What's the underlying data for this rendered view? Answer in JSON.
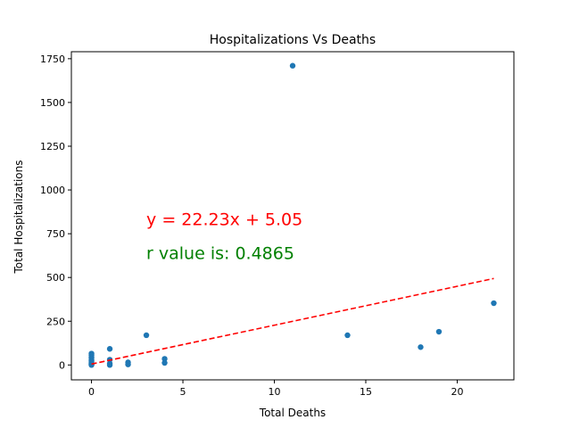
{
  "chart_data": {
    "type": "scatter",
    "title": "Hospitalizations Vs Deaths",
    "xlabel": "Total Deaths",
    "ylabel": "Total Hospitalizations",
    "xlim": [
      -1.1,
      23.1
    ],
    "ylim": [
      -85,
      1790
    ],
    "xticks": [
      0,
      5,
      10,
      15,
      20
    ],
    "yticks": [
      0,
      250,
      500,
      750,
      1000,
      1250,
      1500,
      1750
    ],
    "grid": false,
    "point_color": "#1f77b4",
    "points": [
      {
        "x": 0,
        "y": 0
      },
      {
        "x": 0,
        "y": 3
      },
      {
        "x": 0,
        "y": 6
      },
      {
        "x": 0,
        "y": 10
      },
      {
        "x": 0,
        "y": 15
      },
      {
        "x": 0,
        "y": 22
      },
      {
        "x": 0,
        "y": 30
      },
      {
        "x": 0,
        "y": 42
      },
      {
        "x": 0,
        "y": 55
      },
      {
        "x": 0,
        "y": 65
      },
      {
        "x": 1,
        "y": 0
      },
      {
        "x": 1,
        "y": 8
      },
      {
        "x": 1,
        "y": 30
      },
      {
        "x": 1,
        "y": 92
      },
      {
        "x": 2,
        "y": 3
      },
      {
        "x": 2,
        "y": 15
      },
      {
        "x": 3,
        "y": 170
      },
      {
        "x": 4,
        "y": 12
      },
      {
        "x": 4,
        "y": 35
      },
      {
        "x": 11,
        "y": 1710
      },
      {
        "x": 14,
        "y": 170
      },
      {
        "x": 18,
        "y": 102
      },
      {
        "x": 19,
        "y": 190
      },
      {
        "x": 22,
        "y": 353
      }
    ],
    "regression": {
      "slope": 22.23,
      "intercept": 5.05,
      "x_range": [
        0,
        22
      ],
      "color": "#ff0000",
      "style": "dashed"
    },
    "annotations": [
      {
        "text": "y = 22.23x + 5.05",
        "x": 3,
        "y": 800,
        "color": "#ff0000"
      },
      {
        "text": "r value is: 0.4865",
        "x": 3,
        "y": 605,
        "color": "#008000"
      }
    ]
  }
}
